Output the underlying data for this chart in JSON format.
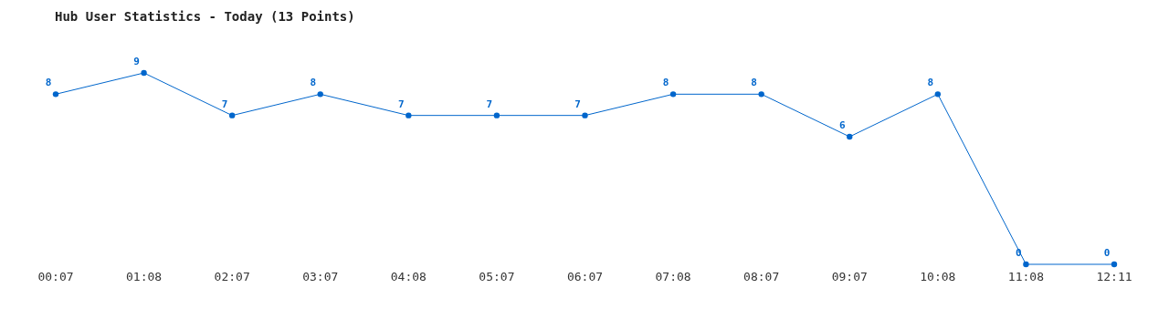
{
  "chart_data": {
    "type": "line",
    "title": "Hub User Statistics - Today (13 Points)",
    "categories": [
      "00:07",
      "01:08",
      "02:07",
      "03:07",
      "04:08",
      "05:07",
      "06:07",
      "07:08",
      "08:07",
      "09:07",
      "10:08",
      "11:08",
      "12:11"
    ],
    "series": [
      {
        "color": "#0066cc",
        "values": [
          8,
          9,
          7,
          8,
          7,
          7,
          7,
          8,
          8,
          6,
          8,
          0,
          0
        ]
      }
    ],
    "data_labels": true,
    "marker": "circle",
    "grid": false
  }
}
